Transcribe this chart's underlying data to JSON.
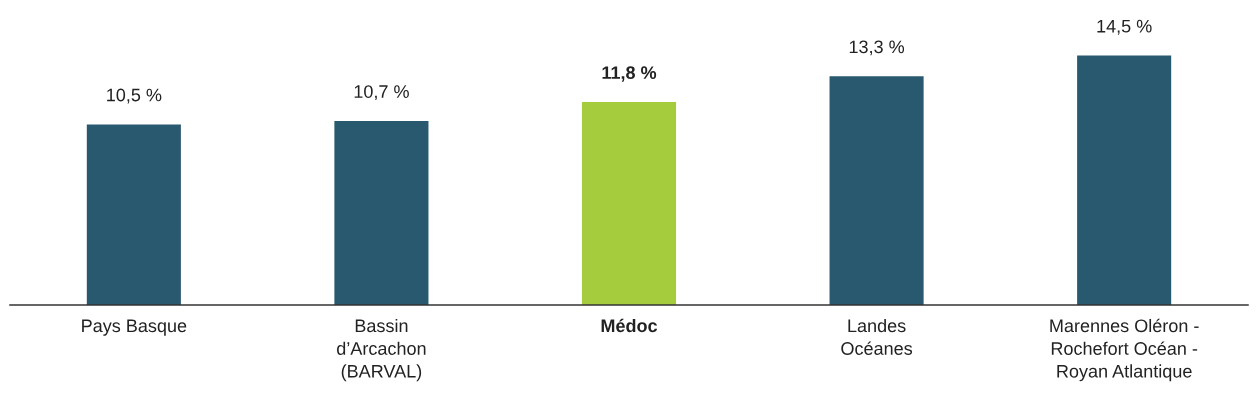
{
  "chart_data": {
    "type": "bar",
    "categories": [
      "Pays Basque",
      "Bassin\nd’Arcachon\n(BARVAL)",
      "Médoc",
      "Landes\nOcéanes",
      "Marennes Oléron -\nRochefort Océan -\nRoyan Atlantique"
    ],
    "values": [
      10.5,
      10.7,
      11.8,
      13.3,
      14.5
    ],
    "colors": [
      "#28596e",
      "#28596e",
      "#a5cc3c",
      "#28596e",
      "#28596e"
    ],
    "value_labels": [
      "10,5 %",
      "10,7 %",
      "11,8 %",
      "13,3 %",
      "14,5 %"
    ],
    "tick_labels": "x",
    "grid": false,
    "legend": false
  }
}
